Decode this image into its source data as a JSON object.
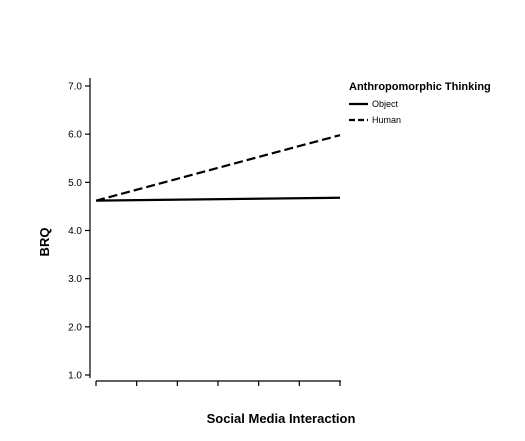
{
  "chart_data": {
    "type": "line",
    "title": "",
    "xlabel": "Social Media Interaction",
    "ylabel": "BRQ",
    "ylim": [
      1.0,
      7.0
    ],
    "yticks": [
      "1.0",
      "2.0",
      "3.0",
      "4.0",
      "5.0",
      "6.0",
      "7.0"
    ],
    "x": [
      0,
      1
    ],
    "grid": false,
    "legend": {
      "title": "Anthropomorphic Thinking",
      "placement": "top-right"
    },
    "series": [
      {
        "name": "Object",
        "values": [
          4.62,
          4.68
        ],
        "style": "solid"
      },
      {
        "name": "Human",
        "values": [
          4.62,
          5.98
        ],
        "style": "dashed"
      }
    ]
  }
}
